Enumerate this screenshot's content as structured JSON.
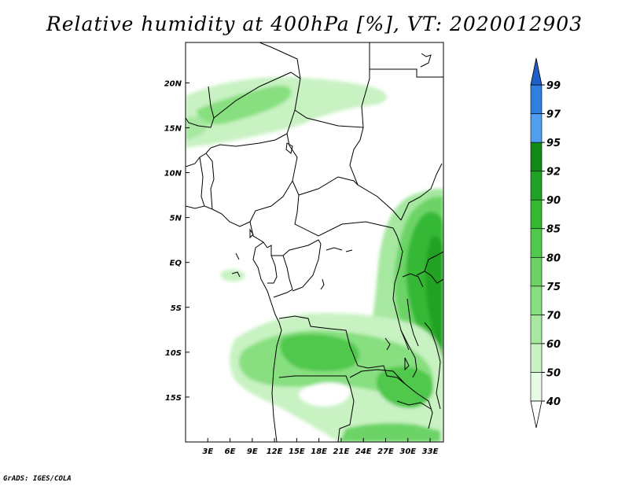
{
  "title": "Relative humidity at 400hPa [%], VT: 2020012903",
  "credit": "GrADS: IGES/COLA",
  "map": {
    "lon_range": [
      0,
      34.8
    ],
    "lat_range": [
      -20,
      24.5
    ],
    "x_ticks": [
      {
        "lon": 3,
        "label": "3E"
      },
      {
        "lon": 6,
        "label": "6E"
      },
      {
        "lon": 9,
        "label": "9E"
      },
      {
        "lon": 12,
        "label": "12E"
      },
      {
        "lon": 15,
        "label": "15E"
      },
      {
        "lon": 18,
        "label": "18E"
      },
      {
        "lon": 21,
        "label": "21E"
      },
      {
        "lon": 24,
        "label": "24E"
      },
      {
        "lon": 27,
        "label": "27E"
      },
      {
        "lon": 30,
        "label": "30E"
      },
      {
        "lon": 33,
        "label": "33E"
      }
    ],
    "y_ticks": [
      {
        "lat": 20,
        "label": "20N"
      },
      {
        "lat": 15,
        "label": "15N"
      },
      {
        "lat": 10,
        "label": "10N"
      },
      {
        "lat": 5,
        "label": "5N"
      },
      {
        "lat": 0,
        "label": "EQ"
      },
      {
        "lat": -5,
        "label": "5S"
      },
      {
        "lat": -10,
        "label": "10S"
      },
      {
        "lat": -15,
        "label": "15S"
      }
    ]
  },
  "colorbar": {
    "levels": [
      "40",
      "50",
      "60",
      "70",
      "75",
      "80",
      "85",
      "90",
      "92",
      "95",
      "97",
      "99"
    ],
    "colors": [
      "#e6fbe4",
      "#c8f2c2",
      "#a6e8a0",
      "#88df80",
      "#6cd466",
      "#50c84c",
      "#34b834",
      "#20a224",
      "#118a16",
      "#4f9ef0",
      "#2f7ee0",
      "#1e5fc8"
    ]
  }
}
